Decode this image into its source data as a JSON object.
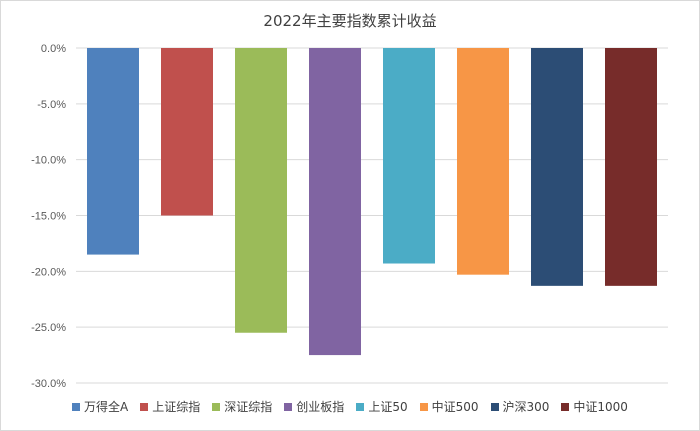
{
  "chart_data": {
    "type": "bar",
    "title": "2022年主要指数累计收益",
    "xlabel": "",
    "ylabel": "",
    "ylim": [
      -30,
      0
    ],
    "yticks": [
      0,
      -5,
      -10,
      -15,
      -20,
      -25,
      -30
    ],
    "ytick_labels": [
      "0.0%",
      "-5.0%",
      "-10.0%",
      "-15.0%",
      "-20.0%",
      "-25.0%",
      "-30.0%"
    ],
    "grid": true,
    "legend_position": "bottom",
    "series": [
      {
        "name": "万得全A",
        "value": -18.5,
        "color": "#4f81bd"
      },
      {
        "name": "上证综指",
        "value": -15.0,
        "color": "#c0504d"
      },
      {
        "name": "深证综指",
        "value": -25.5,
        "color": "#9bbb59"
      },
      {
        "name": "创业板指",
        "value": -27.5,
        "color": "#8064a2"
      },
      {
        "name": "上证50",
        "value": -19.3,
        "color": "#4bacc6"
      },
      {
        "name": "中证500",
        "value": -20.3,
        "color": "#f79646"
      },
      {
        "name": "沪深300",
        "value": -21.3,
        "color": "#2c4d75"
      },
      {
        "name": "中证1000",
        "value": -21.3,
        "color": "#772c2a"
      }
    ]
  }
}
